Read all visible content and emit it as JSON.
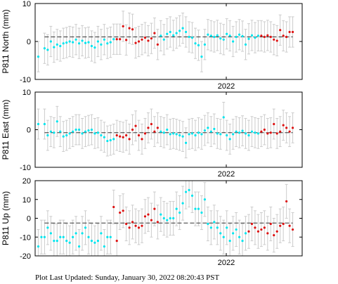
{
  "footer": {
    "label": "Plot Last Updated:",
    "timestamp": "Sunday, January 30, 2022 08:20:43 PST"
  },
  "colors": {
    "cyan": "#00e5ee",
    "red": "#dd1111",
    "error_bar": "#cccccc",
    "mean_line": "#333333"
  },
  "chart_data": [
    {
      "type": "scatter",
      "title": "",
      "ylabel": "P811 North (mm)",
      "xlabel": "",
      "x_tick_label": "2022",
      "ylim": [
        -10,
        10
      ],
      "yticks": [
        -10,
        0,
        10
      ],
      "mean": 1.2,
      "error": 4,
      "series": [
        {
          "color": "cyan",
          "points": [
            [
              1,
              -4
            ],
            [
              3,
              -1.8
            ],
            [
              4,
              -2.2
            ],
            [
              5,
              0
            ],
            [
              6,
              -1.5
            ],
            [
              7,
              -0.8
            ],
            [
              8,
              -1.2
            ],
            [
              9,
              -0.5
            ],
            [
              10,
              -0.3
            ],
            [
              11,
              0
            ],
            [
              12,
              -0.2
            ],
            [
              13,
              0.5
            ],
            [
              14,
              -0.5
            ],
            [
              15,
              0.2
            ],
            [
              16,
              -0.4
            ],
            [
              17,
              -0.2
            ],
            [
              18,
              -1.2
            ],
            [
              19,
              -1.6
            ],
            [
              20,
              0
            ],
            [
              21,
              -0.8
            ],
            [
              22,
              0.5
            ],
            [
              23,
              -0.5
            ],
            [
              24,
              -0.2
            ],
            [
              25,
              0.6
            ],
            [
              40,
              1.5
            ],
            [
              41,
              0.5
            ],
            [
              42,
              2
            ],
            [
              43,
              2.5
            ],
            [
              44,
              1.6
            ],
            [
              45,
              2.2
            ],
            [
              46,
              2.8
            ],
            [
              47,
              3.5
            ],
            [
              48,
              2.5
            ],
            [
              49,
              1.2
            ],
            [
              50,
              1
            ],
            [
              51,
              -0.5
            ],
            [
              52,
              -1
            ],
            [
              53,
              -4
            ],
            [
              54,
              -0.8
            ],
            [
              55,
              1.8
            ],
            [
              56,
              1.5
            ],
            [
              57,
              1.2
            ],
            [
              58,
              1.6
            ],
            [
              59,
              0.8
            ],
            [
              60,
              0.5
            ],
            [
              61,
              2
            ],
            [
              62,
              1.5
            ],
            [
              63,
              0
            ],
            [
              64,
              1.2
            ],
            [
              65,
              1.8
            ],
            [
              66,
              1.4
            ],
            [
              67,
              -0.8
            ],
            [
              68,
              0.7
            ],
            [
              69,
              1.6
            ],
            [
              70,
              1
            ],
            [
              71,
              1.5
            ]
          ]
        },
        {
          "color": "red",
          "points": [
            [
              26,
              0.6
            ],
            [
              27,
              0.6
            ],
            [
              28,
              4
            ],
            [
              29,
              0.4
            ],
            [
              30,
              3.5
            ],
            [
              31,
              3.2
            ],
            [
              32,
              -0.4
            ],
            [
              33,
              0
            ],
            [
              34,
              0.5
            ],
            [
              35,
              1
            ],
            [
              36,
              0.2
            ],
            [
              37,
              0.8
            ],
            [
              38,
              2.2
            ],
            [
              39,
              -0.8
            ],
            [
              72,
              1.5
            ],
            [
              73,
              1.2
            ],
            [
              74,
              1.6
            ],
            [
              75,
              1.2
            ],
            [
              76,
              0.5
            ],
            [
              77,
              0.2
            ],
            [
              78,
              3
            ],
            [
              79,
              1.5
            ],
            [
              80,
              1.2
            ],
            [
              81,
              2.5
            ],
            [
              82,
              2.5
            ]
          ]
        }
      ]
    },
    {
      "type": "scatter",
      "title": "",
      "ylabel": "P811 East (mm)",
      "xlabel": "",
      "x_tick_label": "2022",
      "ylim": [
        -10,
        10
      ],
      "yticks": [
        -10,
        0,
        10
      ],
      "mean": -0.8,
      "error": 4,
      "series": [
        {
          "color": "cyan",
          "points": [
            [
              1,
              1.5
            ],
            [
              3,
              1.5
            ],
            [
              4,
              -1.5
            ],
            [
              5,
              -0.5
            ],
            [
              6,
              -0.8
            ],
            [
              7,
              2.2
            ],
            [
              8,
              -0.5
            ],
            [
              9,
              -1.8
            ],
            [
              10,
              -1.5
            ],
            [
              11,
              -1
            ],
            [
              12,
              -0.5
            ],
            [
              13,
              0
            ],
            [
              14,
              0
            ],
            [
              15,
              -1
            ],
            [
              16,
              -0.5
            ],
            [
              17,
              -0.2
            ],
            [
              18,
              0
            ],
            [
              19,
              -1
            ],
            [
              20,
              -0.8
            ],
            [
              21,
              -1.5
            ],
            [
              22,
              -2
            ],
            [
              23,
              -3
            ],
            [
              24,
              -2.8
            ],
            [
              25,
              -2.5
            ],
            [
              40,
              -0.5
            ],
            [
              41,
              -0.8
            ],
            [
              42,
              0
            ],
            [
              43,
              -1.2
            ],
            [
              44,
              -1
            ],
            [
              45,
              -1.2
            ],
            [
              46,
              -1.5
            ],
            [
              47,
              -1.8
            ],
            [
              48,
              -3.5
            ],
            [
              49,
              -1.2
            ],
            [
              50,
              -1
            ],
            [
              51,
              -1.5
            ],
            [
              52,
              -0.8
            ],
            [
              53,
              -1.2
            ],
            [
              54,
              -0.2
            ],
            [
              55,
              0.5
            ],
            [
              56,
              -0.5
            ],
            [
              57,
              0.2
            ],
            [
              58,
              -1
            ],
            [
              59,
              -1.2
            ],
            [
              60,
              3.3
            ],
            [
              61,
              -1.5
            ],
            [
              62,
              -2.5
            ],
            [
              63,
              -1.2
            ],
            [
              64,
              -0.5
            ],
            [
              65,
              -0.8
            ],
            [
              66,
              -0.3
            ],
            [
              67,
              -1
            ],
            [
              68,
              -1.5
            ],
            [
              69,
              -0.5
            ],
            [
              70,
              -0.8
            ],
            [
              71,
              -1
            ]
          ]
        },
        {
          "color": "red",
          "points": [
            [
              26,
              -1.5
            ],
            [
              27,
              -1.8
            ],
            [
              28,
              -2
            ],
            [
              29,
              -1.5
            ],
            [
              30,
              -2.5
            ],
            [
              31,
              0
            ],
            [
              32,
              1
            ],
            [
              33,
              -1.5
            ],
            [
              34,
              -2.5
            ],
            [
              35,
              -1
            ],
            [
              36,
              0.5
            ],
            [
              37,
              1.5
            ],
            [
              38,
              -0.5
            ],
            [
              39,
              0.5
            ],
            [
              72,
              -0.5
            ],
            [
              73,
              0
            ],
            [
              74,
              -1
            ],
            [
              75,
              -0.8
            ],
            [
              76,
              1.5
            ],
            [
              77,
              -1
            ],
            [
              78,
              -0.5
            ],
            [
              79,
              1.2
            ],
            [
              80,
              0.5
            ],
            [
              81,
              -0.5
            ],
            [
              82,
              0.5
            ]
          ]
        }
      ]
    },
    {
      "type": "scatter",
      "title": "",
      "ylabel": "P811 Up (mm)",
      "xlabel": "",
      "x_tick_label": "2022",
      "ylim": [
        -20,
        20
      ],
      "yticks": [
        -20,
        -10,
        0,
        10,
        20
      ],
      "mean": -2.5,
      "error": 9,
      "series": [
        {
          "color": "cyan",
          "points": [
            [
              1,
              -15
            ],
            [
              2,
              -10
            ],
            [
              3,
              -10
            ],
            [
              4,
              -5
            ],
            [
              5,
              -8
            ],
            [
              6,
              -12
            ],
            [
              7,
              -12
            ],
            [
              8,
              -10
            ],
            [
              9,
              -10
            ],
            [
              10,
              -12
            ],
            [
              11,
              -13
            ],
            [
              12,
              -10
            ],
            [
              13,
              -8
            ],
            [
              14,
              -15
            ],
            [
              15,
              -8
            ],
            [
              16,
              -5
            ],
            [
              17,
              -10
            ],
            [
              18,
              -12
            ],
            [
              19,
              -13
            ],
            [
              20,
              -12
            ],
            [
              21,
              -8
            ],
            [
              22,
              -15
            ],
            [
              23,
              -10
            ],
            [
              24,
              -10
            ],
            [
              40,
              2
            ],
            [
              41,
              0
            ],
            [
              42,
              -1
            ],
            [
              43,
              0
            ],
            [
              44,
              0
            ],
            [
              45,
              5
            ],
            [
              46,
              3
            ],
            [
              47,
              8
            ],
            [
              48,
              14
            ],
            [
              49,
              15
            ],
            [
              50,
              12
            ],
            [
              51,
              5
            ],
            [
              52,
              5
            ],
            [
              53,
              3
            ],
            [
              54,
              10
            ],
            [
              55,
              -3
            ],
            [
              56,
              -5
            ],
            [
              57,
              -2
            ],
            [
              58,
              -5
            ],
            [
              59,
              -8
            ],
            [
              60,
              -10
            ],
            [
              61,
              -5
            ],
            [
              62,
              -12
            ],
            [
              63,
              -8
            ],
            [
              64,
              -6
            ],
            [
              65,
              -10
            ],
            [
              66,
              -12
            ],
            [
              67,
              -8
            ]
          ]
        },
        {
          "color": "red",
          "points": [
            [
              25,
              6
            ],
            [
              26,
              -12
            ],
            [
              27,
              3
            ],
            [
              28,
              4
            ],
            [
              29,
              -3
            ],
            [
              30,
              -5
            ],
            [
              31,
              -2
            ],
            [
              32,
              -4
            ],
            [
              33,
              -5
            ],
            [
              34,
              -4
            ],
            [
              35,
              1
            ],
            [
              36,
              2
            ],
            [
              37,
              -1
            ],
            [
              38,
              5
            ],
            [
              39,
              -2
            ],
            [
              68,
              -7
            ],
            [
              69,
              -3
            ],
            [
              70,
              -5
            ],
            [
              71,
              -7
            ],
            [
              72,
              -6
            ],
            [
              73,
              -5
            ],
            [
              74,
              -8
            ],
            [
              75,
              -3
            ],
            [
              76,
              -9
            ],
            [
              77,
              -7
            ],
            [
              78,
              -4
            ],
            [
              79,
              -3
            ],
            [
              80,
              9
            ],
            [
              81,
              -4
            ],
            [
              82,
              -6
            ]
          ]
        }
      ]
    }
  ]
}
